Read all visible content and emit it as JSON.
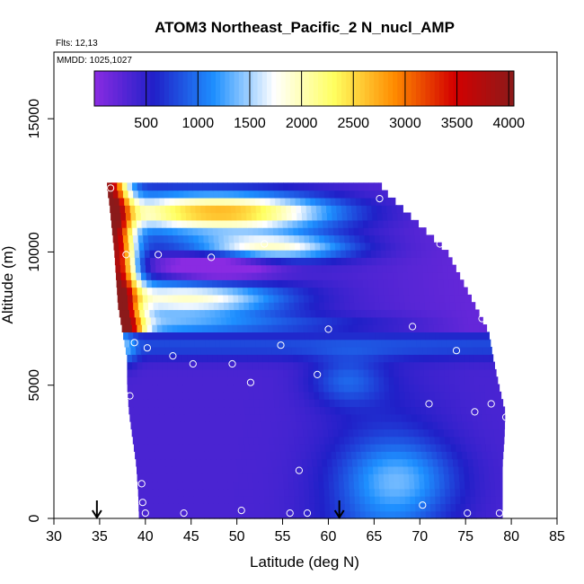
{
  "chart_data": {
    "type": "heatmap",
    "title": "ATOM3 Northeast_Pacific_2 N_nucl_AMP",
    "flights_label": "Flts: 12,13",
    "dates_label": "MMDD: 1025,1027",
    "xlabel": "Latitude (deg N)",
    "ylabel": "Altitude (m)",
    "xlim": [
      30,
      85
    ],
    "ylim": [
      0,
      17500
    ],
    "x_ticks": [
      "30",
      "35",
      "40",
      "45",
      "50",
      "55",
      "60",
      "65",
      "70",
      "75",
      "80",
      "85"
    ],
    "y_ticks": [
      "0",
      "5000",
      "10000",
      "15000"
    ],
    "colorbar": {
      "range": [
        0,
        4050
      ],
      "tick_labels": [
        "500",
        "1000",
        "1500",
        "2000",
        "2500",
        "3000",
        "3500",
        "4000"
      ],
      "colors": [
        "#8a2be2",
        "#2020c8",
        "#1e90ff",
        "#ffffff",
        "#ffff60",
        "#ff8c00",
        "#d40000",
        "#8b1a1a"
      ]
    },
    "envelope": [
      {
        "alt": 12400,
        "lat_min": 35.8,
        "lat_max": 65.8
      },
      {
        "alt": 12000,
        "lat_min": 36.0,
        "lat_max": 67.0
      },
      {
        "alt": 11000,
        "lat_min": 36.3,
        "lat_max": 70.0
      },
      {
        "alt": 10000,
        "lat_min": 36.6,
        "lat_max": 73.0
      },
      {
        "alt": 9000,
        "lat_min": 36.8,
        "lat_max": 74.5
      },
      {
        "alt": 8000,
        "lat_min": 37.0,
        "lat_max": 76.0
      },
      {
        "alt": 7000,
        "lat_min": 37.5,
        "lat_max": 77.5
      },
      {
        "alt": 6000,
        "lat_min": 38.0,
        "lat_max": 78.0
      },
      {
        "alt": 5000,
        "lat_min": 38.0,
        "lat_max": 78.6
      },
      {
        "alt": 4000,
        "lat_min": 38.2,
        "lat_max": 79.3
      },
      {
        "alt": 3000,
        "lat_min": 38.6,
        "lat_max": 79.2
      },
      {
        "alt": 2000,
        "lat_min": 39.0,
        "lat_max": 79.0
      },
      {
        "alt": 1000,
        "lat_min": 39.2,
        "lat_max": 79.0
      },
      {
        "alt": 0,
        "lat_min": 39.3,
        "lat_max": 79.0
      }
    ],
    "features": [
      {
        "name": "upper-bright-band",
        "lat_center": 50,
        "alt_center": 11300,
        "lat_width": 11,
        "alt_width": 700,
        "value": 3600
      },
      {
        "name": "mid-band",
        "lat_center": 52,
        "alt_center": 10200,
        "lat_width": 9,
        "alt_width": 600,
        "value": 3200
      },
      {
        "name": "lower-band",
        "lat_center": 52,
        "alt_center": 8700,
        "lat_width": 10,
        "alt_width": 600,
        "value": 2300
      },
      {
        "name": "inner-blue-core",
        "lat_center": 49,
        "alt_center": 9600,
        "lat_width": 8,
        "alt_width": 700,
        "value": 1300
      },
      {
        "name": "low-altitude-blue",
        "lat_center": 67,
        "alt_center": 1500,
        "lat_width": 8,
        "alt_width": 1500,
        "value": 900
      }
    ],
    "samples": [
      [
        36.2,
        12400
      ],
      [
        65.6,
        12000
      ],
      [
        37.9,
        9900
      ],
      [
        41.4,
        9900
      ],
      [
        47.2,
        9800
      ],
      [
        53.0,
        10300
      ],
      [
        72.2,
        10300
      ],
      [
        36.5,
        7200
      ],
      [
        60.0,
        7100
      ],
      [
        69.2,
        7200
      ],
      [
        76.8,
        7500
      ],
      [
        38.8,
        6600
      ],
      [
        40.2,
        6400
      ],
      [
        43.0,
        6100
      ],
      [
        45.2,
        5800
      ],
      [
        49.5,
        5800
      ],
      [
        54.8,
        6500
      ],
      [
        58.8,
        5400
      ],
      [
        74.0,
        6300
      ],
      [
        51.5,
        5100
      ],
      [
        38.3,
        4600
      ],
      [
        71.0,
        4300
      ],
      [
        76.0,
        4000
      ],
      [
        77.8,
        4300
      ],
      [
        79.4,
        3800
      ],
      [
        56.8,
        1800
      ],
      [
        39.6,
        1300
      ],
      [
        39.7,
        600
      ],
      [
        40.0,
        200
      ],
      [
        44.2,
        200
      ],
      [
        50.5,
        300
      ],
      [
        55.8,
        200
      ],
      [
        57.7,
        200
      ],
      [
        70.3,
        500
      ],
      [
        75.2,
        200
      ],
      [
        78.7,
        200
      ]
    ],
    "arrows_lat": [
      34.7,
      61.2
    ]
  }
}
